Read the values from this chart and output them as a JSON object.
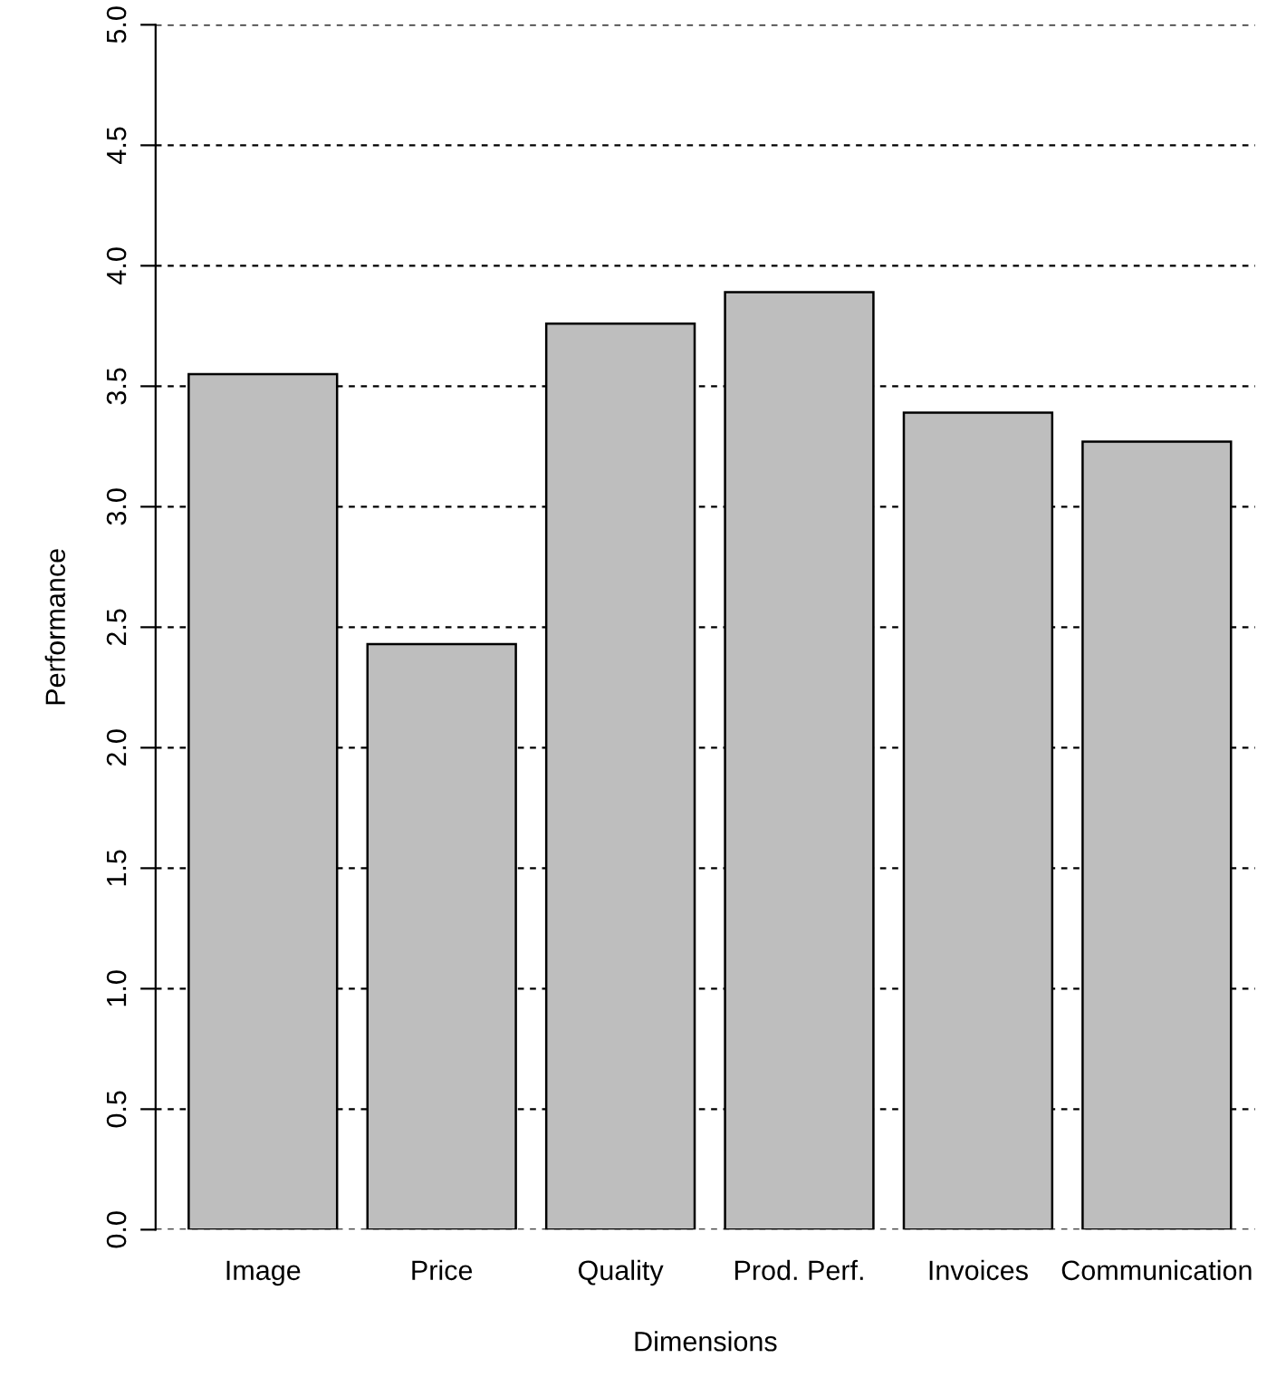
{
  "chart_data": {
    "type": "bar",
    "xlabel": "Dimensions",
    "ylabel": "Performance",
    "categories": [
      "Image",
      "Price",
      "Quality",
      "Prod. Perf.",
      "Invoices",
      "Communication"
    ],
    "values": [
      3.55,
      2.43,
      3.76,
      3.89,
      3.39,
      3.27
    ],
    "color": "#bebebe",
    "ylim": [
      0,
      5
    ],
    "yticks": [
      {
        "value": 0,
        "label": "0.0"
      },
      0.5,
      {
        "value": 1,
        "label": "1.0"
      },
      1.5,
      {
        "value": 2,
        "label": "2.0"
      },
      2.5,
      {
        "value": 3,
        "label": "3.0"
      },
      3.5,
      {
        "value": 4,
        "label": "4.0"
      },
      4.5,
      {
        "value": 5,
        "label": "5.0"
      }
    ],
    "grid": "y"
  }
}
